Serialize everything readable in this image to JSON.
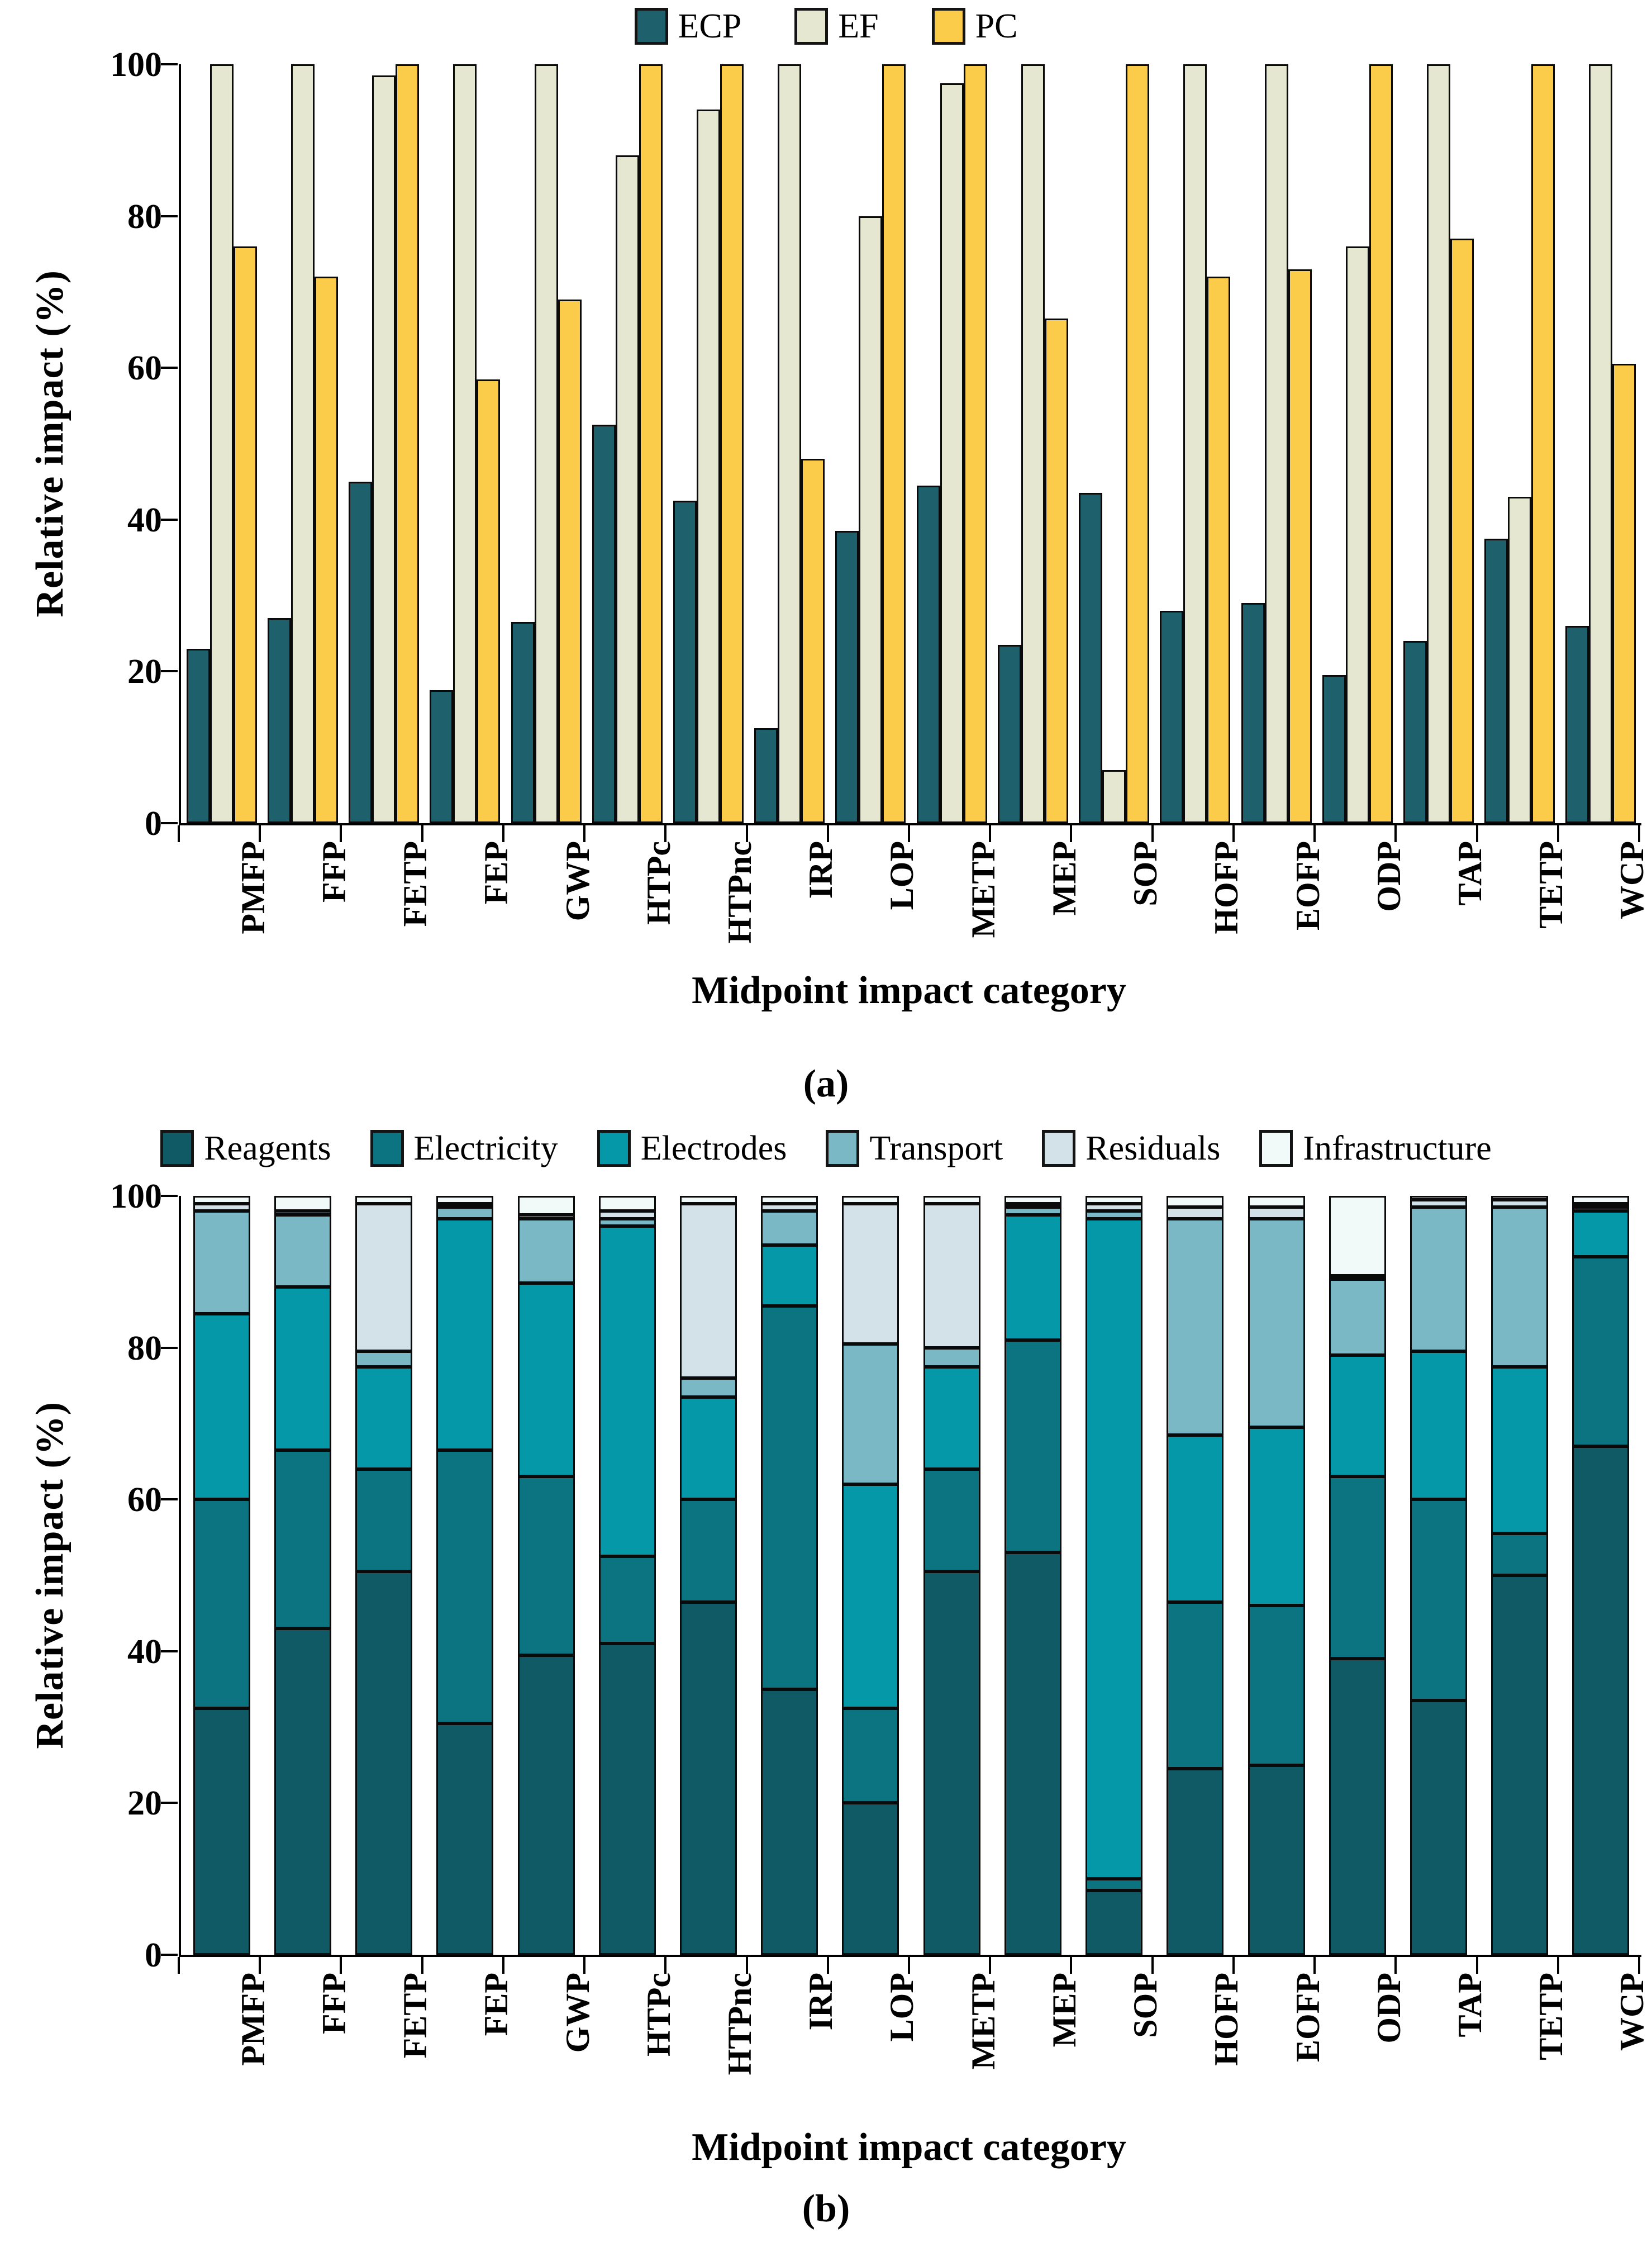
{
  "panel_a": {
    "panel_label": "(a)",
    "y_axis_title": "Relative impact (%)",
    "x_axis_title": "Midpoint impact category",
    "y_ticks": [
      "100",
      "80",
      "60",
      "40",
      "20",
      "0"
    ]
  },
  "panel_b": {
    "panel_label": "(b)",
    "y_axis_title": "Relative impact (%)",
    "x_axis_title": "Midpoint impact category",
    "y_ticks": [
      "100",
      "80",
      "60",
      "40",
      "20",
      "0"
    ]
  },
  "chart_data": [
    {
      "type": "bar",
      "panel": "a",
      "grouped": true,
      "title": "",
      "xlabel": "Midpoint impact category",
      "ylabel": "Relative impact (%)",
      "ylim": [
        0,
        100
      ],
      "grid": false,
      "legend_position": "top-center",
      "categories": [
        "PMFP",
        "FFP",
        "FETP",
        "FEP",
        "GWP",
        "HTPc",
        "HTPnc",
        "IRP",
        "LOP",
        "METP",
        "MEP",
        "SOP",
        "HOFP",
        "EOFP",
        "ODP",
        "TAP",
        "TETP",
        "WCP"
      ],
      "series": [
        {
          "name": "ECP",
          "color": "#1E616C",
          "values": [
            23,
            27,
            45,
            17.5,
            26.5,
            52.5,
            42.5,
            12.5,
            38.5,
            44.5,
            23.5,
            43.5,
            28,
            29,
            19.5,
            24,
            37.5,
            26
          ]
        },
        {
          "name": "EF",
          "color": "#E5E7D0",
          "values": [
            100,
            100,
            98.5,
            100,
            100,
            88,
            94,
            100,
            80,
            97.5,
            100,
            7,
            100,
            100,
            76,
            100,
            43,
            100
          ]
        },
        {
          "name": "PC",
          "color": "#FBCB4A",
          "values": [
            76,
            72,
            100,
            58.5,
            69,
            100,
            100,
            48,
            100,
            100,
            66.5,
            100,
            72,
            73,
            100,
            77,
            100,
            60.5
          ]
        }
      ]
    },
    {
      "type": "bar",
      "panel": "b",
      "stacked": true,
      "title": "",
      "xlabel": "Midpoint impact category",
      "ylabel": "Relative impact (%)",
      "ylim": [
        0,
        100
      ],
      "grid": false,
      "legend_position": "top-center",
      "categories": [
        "PMFP",
        "FFP",
        "FETP",
        "FEP",
        "GWP",
        "HTPc",
        "HTPnc",
        "IRP",
        "LOP",
        "METP",
        "MEP",
        "SOP",
        "HOFP",
        "EOFP",
        "ODP",
        "TAP",
        "TETP",
        "WCP"
      ],
      "series": [
        {
          "name": "Reagents",
          "color": "#0F5A64",
          "values": [
            32.5,
            43,
            50.5,
            30.5,
            39.5,
            41,
            46.5,
            35,
            20,
            50.5,
            53,
            8.5,
            24.5,
            25,
            39,
            33.5,
            50,
            67
          ]
        },
        {
          "name": "Electricity",
          "color": "#0C7480",
          "values": [
            27.5,
            23.5,
            13.5,
            36,
            23.5,
            11.5,
            13.5,
            50.5,
            12.5,
            13.5,
            28,
            1.5,
            22,
            21,
            24,
            26.5,
            5.5,
            25
          ]
        },
        {
          "name": "Electrodes",
          "color": "#0598A9",
          "values": [
            24.5,
            21.5,
            13.5,
            30.5,
            25.5,
            43.5,
            13.5,
            8,
            29.5,
            13.5,
            16.5,
            87,
            22,
            23.5,
            16,
            19.5,
            22,
            6
          ]
        },
        {
          "name": "Transport",
          "color": "#7BB8C5",
          "values": [
            13.5,
            9.5,
            2,
            1.5,
            8.5,
            1,
            2.5,
            4.5,
            18.5,
            2.5,
            1,
            1,
            28.5,
            27.5,
            10,
            19,
            21,
            0.5
          ]
        },
        {
          "name": "Residuals",
          "color": "#D2E2E8",
          "values": [
            1,
            0.5,
            19.5,
            0.5,
            0.5,
            1,
            23,
            1,
            18.5,
            19,
            0.5,
            1,
            1.5,
            1.5,
            0.5,
            1,
            1,
            0.5
          ]
        },
        {
          "name": "Infrastructure",
          "color": "#F1F9F9",
          "values": [
            1,
            2,
            1,
            1,
            2.5,
            2,
            1,
            1,
            1,
            1,
            1,
            1,
            1.5,
            1.5,
            10.5,
            0.5,
            0.5,
            1
          ]
        }
      ]
    }
  ]
}
